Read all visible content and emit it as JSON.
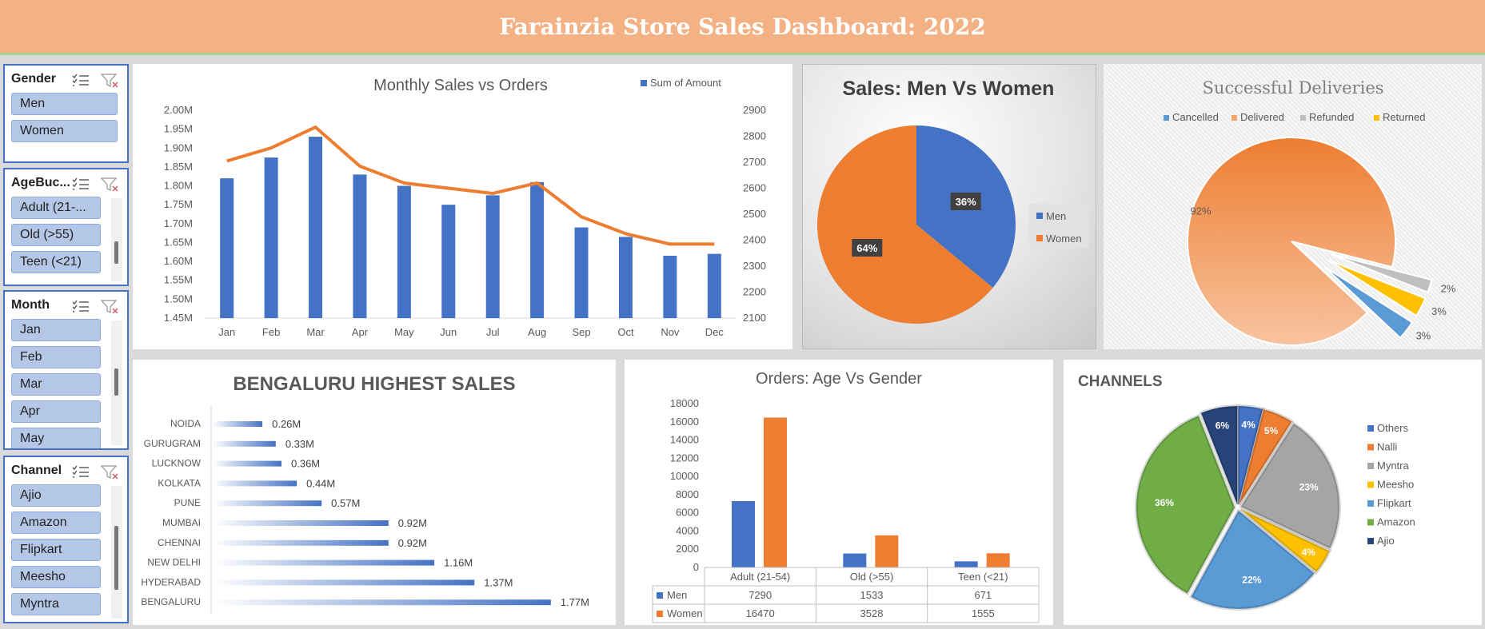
{
  "header": {
    "title": "Farainzia Store Sales Dashboard: 2022"
  },
  "slicers": {
    "gender": {
      "title": "Gender",
      "items": [
        "Men",
        "Women"
      ]
    },
    "age": {
      "title": "AgeBuc...",
      "items": [
        "Adult (21-...",
        "Old (>55)",
        "Teen (<21)"
      ]
    },
    "month": {
      "title": "Month",
      "items": [
        "Jan",
        "Feb",
        "Mar",
        "Apr",
        "May"
      ]
    },
    "channel": {
      "title": "Channel",
      "items": [
        "Ajio",
        "Amazon",
        "Flipkart",
        "Meesho",
        "Myntra"
      ]
    }
  },
  "colors": {
    "blue": "#4472c4",
    "orange": "#ed7d31",
    "gray": "#a5a5a5",
    "yellow": "#ffc000",
    "lightblue": "#5b9bd5",
    "green": "#70ad47",
    "navy": "#264478"
  },
  "chart_data": [
    {
      "type": "bar",
      "title": "Monthly Sales vs Orders",
      "categories": [
        "Jan",
        "Feb",
        "Mar",
        "Apr",
        "May",
        "Jun",
        "Jul",
        "Aug",
        "Sep",
        "Oct",
        "Nov",
        "Dec"
      ],
      "series": [
        {
          "name": "Sum of Amount",
          "type": "bar",
          "axis": "left",
          "values": [
            1.82,
            1.875,
            1.93,
            1.83,
            1.8,
            1.75,
            1.775,
            1.81,
            1.69,
            1.665,
            1.615,
            1.62
          ]
        },
        {
          "type": "line",
          "axis": "right",
          "values": [
            2705,
            2755,
            2835,
            2685,
            2620,
            2600,
            2580,
            2620,
            2490,
            2425,
            2385,
            2385
          ]
        }
      ],
      "y_left": {
        "min": 1.45,
        "max": 2.0,
        "ticks": [
          "1.45M",
          "1.50M",
          "1.55M",
          "1.60M",
          "1.65M",
          "1.70M",
          "1.75M",
          "1.80M",
          "1.85M",
          "1.90M",
          "1.95M",
          "2.00M"
        ]
      },
      "y_right": {
        "min": 2100,
        "max": 2900,
        "ticks": [
          "2100",
          "2200",
          "2300",
          "2400",
          "2500",
          "2600",
          "2700",
          "2800",
          "2900"
        ]
      },
      "legend": "top-right"
    },
    {
      "type": "pie",
      "title": "Sales: Men Vs Women",
      "labels": [
        "Men",
        "Women"
      ],
      "values": [
        36,
        64
      ],
      "value_labels": [
        "36%",
        "64%"
      ],
      "legend": "right"
    },
    {
      "type": "pie",
      "title": "Successful Deliveries",
      "labels": [
        "Cancelled",
        "Delivered",
        "Refunded",
        "Returned"
      ],
      "values": [
        3,
        92,
        2,
        3
      ],
      "value_labels": [
        "3%",
        "92%",
        "2%",
        "3%"
      ],
      "legend": "top"
    },
    {
      "type": "bar",
      "orientation": "horizontal",
      "title": "BENGALURU HIGHEST SALES",
      "categories": [
        "NOIDA",
        "GURUGRAM",
        "LUCKNOW",
        "KOLKATA",
        "PUNE",
        "MUMBAI",
        "CHENNAI",
        "NEW DELHI",
        "HYDERABAD",
        "BENGALURU"
      ],
      "values": [
        0.26,
        0.33,
        0.36,
        0.44,
        0.57,
        0.92,
        0.92,
        1.16,
        1.37,
        1.77
      ],
      "value_labels": [
        "0.26M",
        "0.33M",
        "0.36M",
        "0.44M",
        "0.57M",
        "0.92M",
        "0.92M",
        "1.16M",
        "1.37M",
        "1.77M"
      ]
    },
    {
      "type": "bar",
      "title": "Orders: Age Vs Gender",
      "categories": [
        "Adult (21-54)",
        "Old (>55)",
        "Teen (<21)"
      ],
      "series": [
        {
          "name": "Men",
          "values": [
            7290,
            1533,
            671
          ]
        },
        {
          "name": "Women",
          "values": [
            16470,
            3528,
            1555
          ]
        }
      ],
      "ylim": [
        0,
        18000
      ],
      "y_ticks": [
        "0",
        "2000",
        "4000",
        "6000",
        "8000",
        "10000",
        "12000",
        "14000",
        "16000",
        "18000"
      ],
      "table": {
        "rows": [
          {
            "name": "Men",
            "cells": [
              "7290",
              "1533",
              "671"
            ]
          },
          {
            "name": "Women",
            "cells": [
              "16470",
              "3528",
              "1555"
            ]
          }
        ]
      }
    },
    {
      "type": "pie",
      "title": "CHANNELS",
      "labels": [
        "Others",
        "Nalli",
        "Myntra",
        "Meesho",
        "Flipkart",
        "Amazon",
        "Ajio"
      ],
      "values": [
        4,
        5,
        23,
        4,
        22,
        36,
        6
      ],
      "value_labels": [
        "4%",
        "5%",
        "23%",
        "4%",
        "22%",
        "36%",
        "6%"
      ],
      "legend": "right"
    }
  ]
}
